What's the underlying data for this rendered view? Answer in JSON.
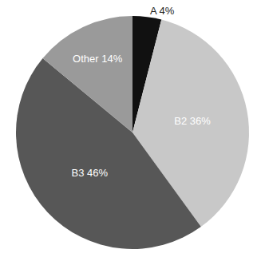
{
  "chart_data": {
    "type": "pie",
    "categories": [
      "A 4%",
      "B2 36%",
      "B3 46%",
      "Other 14%"
    ],
    "values": [
      4,
      36,
      46,
      14
    ],
    "colors": [
      "#111111",
      "#c8c8c8",
      "#575757",
      "#9a9a9a"
    ]
  }
}
